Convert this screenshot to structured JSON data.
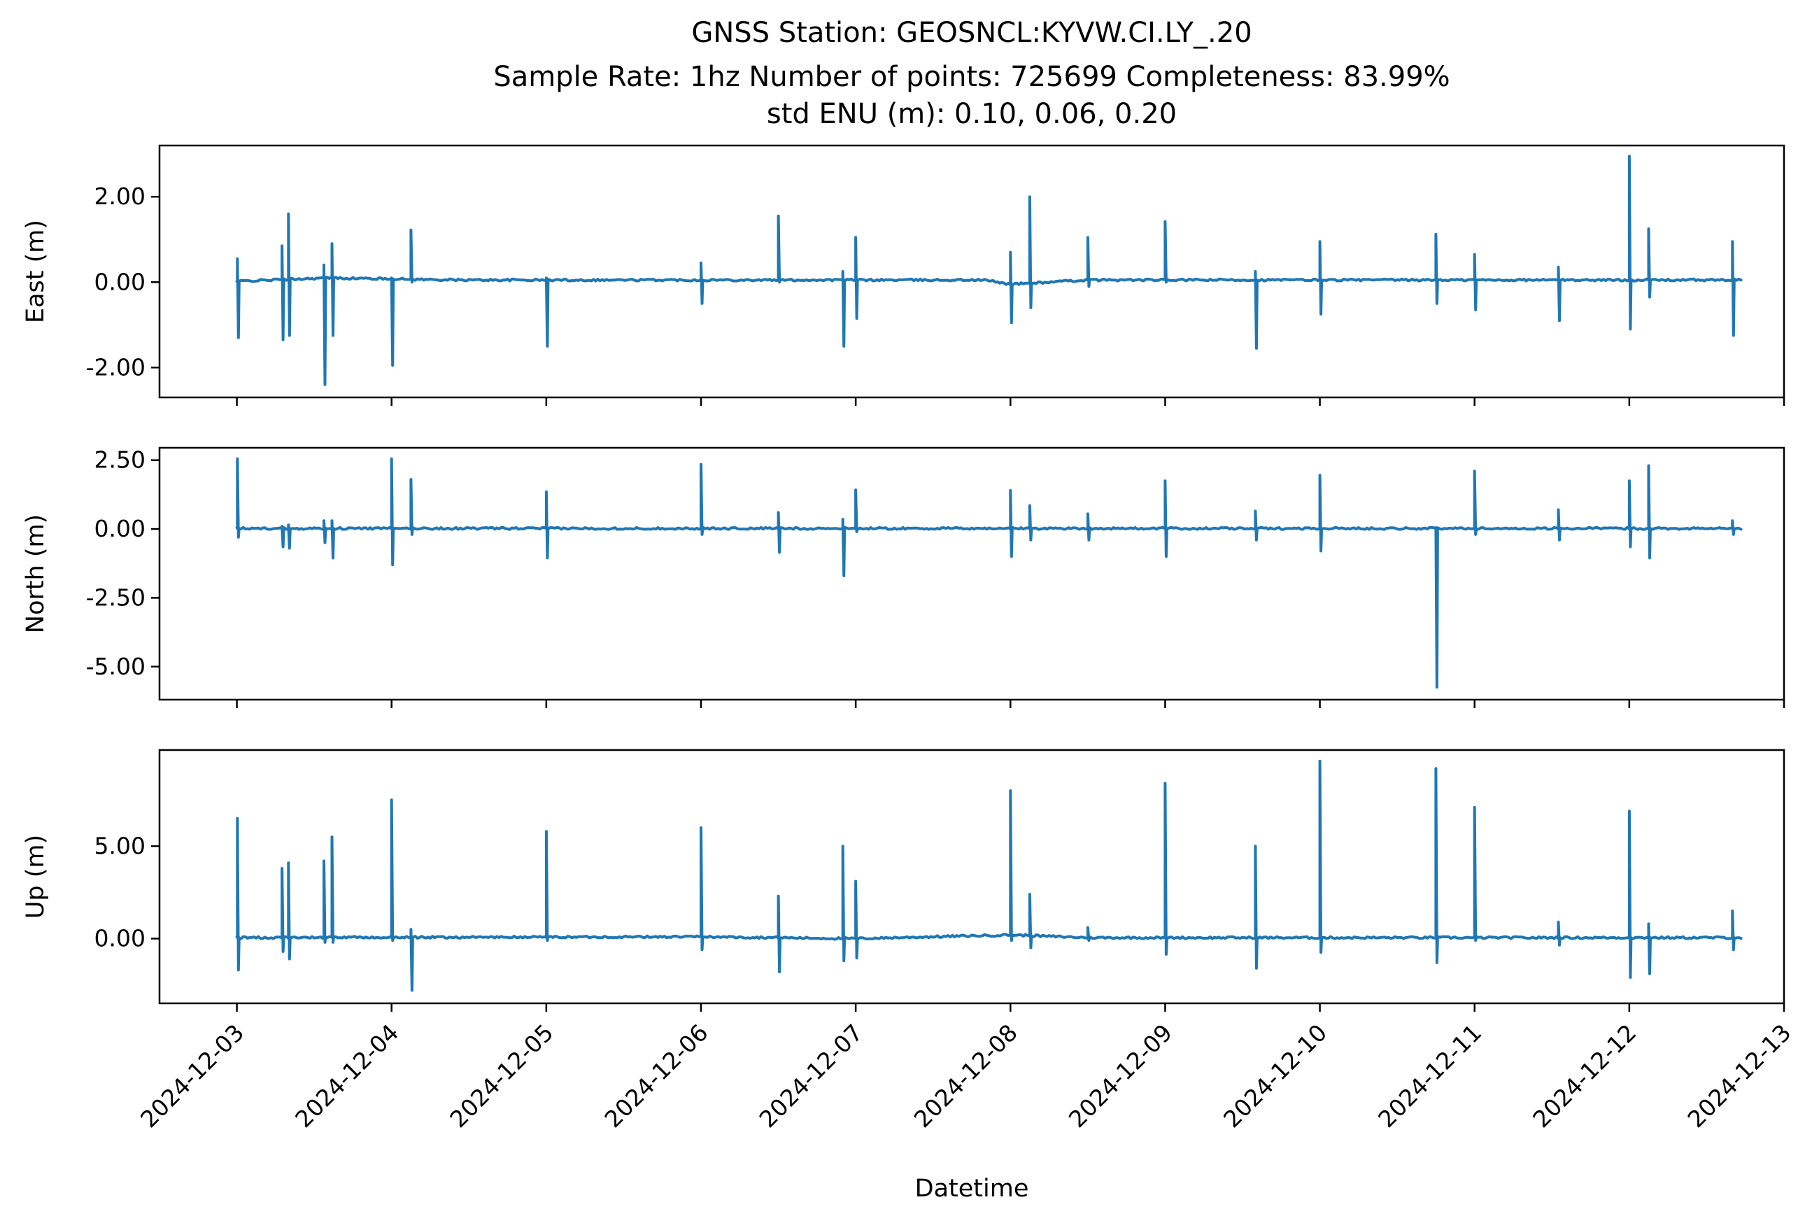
{
  "chart_data": {
    "type": "line",
    "title_lines": [
      "GNSS Station: GEOSNCL:KYVW.CI.LY_.20",
      "Sample Rate: 1hz   Number of points: 725699    Completeness:  83.99%",
      "std ENU (m):  0.10, 0.06, 0.20"
    ],
    "xlabel": "Datetime",
    "x_range": [
      "2024-12-02T12:00",
      "2024-12-13T00:00"
    ],
    "x_ticks": [
      "2024-12-03",
      "2024-12-04",
      "2024-12-05",
      "2024-12-06",
      "2024-12-07",
      "2024-12-08",
      "2024-12-09",
      "2024-12-10",
      "2024-12-11",
      "2024-12-12",
      "2024-12-13"
    ],
    "data_start": "2024-12-03T00:00",
    "data_end": "2024-12-12T17:30",
    "series_color": "#1f77b4",
    "panels": [
      {
        "name": "east",
        "ylabel": "East (m)",
        "ylim": [
          -2.7,
          3.2
        ],
        "yticks": [
          2.0,
          0.0,
          -2.0
        ],
        "ytick_labels": [
          "2.00",
          "0.00",
          "-2.00"
        ],
        "baseline": [
          [
            "2024-12-03T00:00",
            0.02
          ],
          [
            "2024-12-03T14:00",
            0.1
          ],
          [
            "2024-12-04T10:00",
            0.05
          ],
          [
            "2024-12-07T00:00",
            0.05
          ],
          [
            "2024-12-07T20:00",
            0.05
          ],
          [
            "2024-12-08T00:00",
            -0.05
          ],
          [
            "2024-12-08T12:00",
            0.05
          ],
          [
            "2024-12-10T18:00",
            0.05
          ],
          [
            "2024-12-12T17:30",
            0.05
          ]
        ],
        "spikes": [
          [
            "2024-12-03T00:05",
            0.55,
            -1.3
          ],
          [
            "2024-12-03T07:00",
            0.85,
            -1.35
          ],
          [
            "2024-12-03T08:00",
            1.6,
            -1.25
          ],
          [
            "2024-12-03T13:30",
            0.4,
            -2.4
          ],
          [
            "2024-12-03T14:45",
            0.9,
            -1.25
          ],
          [
            "2024-12-04T00:00",
            0.1,
            -1.95
          ],
          [
            "2024-12-04T03:00",
            1.22,
            0.0
          ],
          [
            "2024-12-05T00:00",
            0.1,
            -1.5
          ],
          [
            "2024-12-06T00:00",
            0.45,
            -0.5
          ],
          [
            "2024-12-06T12:00",
            1.55,
            0.0
          ],
          [
            "2024-12-06T22:00",
            0.25,
            -1.5
          ],
          [
            "2024-12-07T00:00",
            1.05,
            -0.85
          ],
          [
            "2024-12-08T00:00",
            0.7,
            -0.95
          ],
          [
            "2024-12-08T03:00",
            2.0,
            -0.6
          ],
          [
            "2024-12-08T12:00",
            1.05,
            -0.1
          ],
          [
            "2024-12-09T00:00",
            1.42,
            0.0
          ],
          [
            "2024-12-09T14:00",
            0.25,
            -1.55
          ],
          [
            "2024-12-10T00:00",
            0.95,
            -0.75
          ],
          [
            "2024-12-10T18:00",
            1.12,
            -0.5
          ],
          [
            "2024-12-11T00:00",
            0.65,
            -0.65
          ],
          [
            "2024-12-11T13:00",
            0.35,
            -0.9
          ],
          [
            "2024-12-12T00:00",
            2.95,
            -1.1
          ],
          [
            "2024-12-12T03:00",
            1.25,
            -0.35
          ],
          [
            "2024-12-12T16:00",
            0.95,
            -1.25
          ]
        ]
      },
      {
        "name": "north",
        "ylabel": "North (m)",
        "ylim": [
          -6.2,
          2.95
        ],
        "yticks": [
          2.5,
          0.0,
          -2.5,
          -5.0
        ],
        "ytick_labels": [
          "2.50",
          "0.00",
          "-2.50",
          "-5.00"
        ],
        "baseline": [
          [
            "2024-12-03T00:00",
            0.02
          ],
          [
            "2024-12-12T17:30",
            0.02
          ]
        ],
        "spikes": [
          [
            "2024-12-03T00:05",
            2.55,
            -0.3
          ],
          [
            "2024-12-03T07:00",
            0.1,
            -0.65
          ],
          [
            "2024-12-03T08:00",
            0.15,
            -0.7
          ],
          [
            "2024-12-03T13:30",
            0.3,
            -0.5
          ],
          [
            "2024-12-03T14:45",
            0.3,
            -1.05
          ],
          [
            "2024-12-04T00:00",
            2.55,
            -1.3
          ],
          [
            "2024-12-04T03:00",
            1.8,
            -0.2
          ],
          [
            "2024-12-05T00:00",
            1.35,
            -1.05
          ],
          [
            "2024-12-06T00:00",
            2.35,
            -0.2
          ],
          [
            "2024-12-06T12:00",
            0.6,
            -0.85
          ],
          [
            "2024-12-06T22:00",
            0.35,
            -1.7
          ],
          [
            "2024-12-07T00:00",
            1.42,
            -0.1
          ],
          [
            "2024-12-08T00:00",
            1.4,
            -1.0
          ],
          [
            "2024-12-08T03:00",
            0.85,
            -0.4
          ],
          [
            "2024-12-08T12:00",
            0.55,
            -0.4
          ],
          [
            "2024-12-09T00:00",
            1.75,
            -1.0
          ],
          [
            "2024-12-09T14:00",
            0.65,
            -0.4
          ],
          [
            "2024-12-10T00:00",
            1.95,
            -0.8
          ],
          [
            "2024-12-10T18:00",
            0.05,
            -5.75
          ],
          [
            "2024-12-11T00:00",
            2.1,
            -0.2
          ],
          [
            "2024-12-11T13:00",
            0.7,
            -0.4
          ],
          [
            "2024-12-12T00:00",
            1.75,
            -0.65
          ],
          [
            "2024-12-12T03:00",
            2.3,
            -1.05
          ],
          [
            "2024-12-12T16:00",
            0.3,
            -0.2
          ]
        ]
      },
      {
        "name": "up",
        "ylabel": "Up (m)",
        "ylim": [
          -3.5,
          10.2
        ],
        "yticks": [
          5.0,
          0.0
        ],
        "ytick_labels": [
          "5.00",
          "0.00"
        ],
        "baseline": [
          [
            "2024-12-03T00:00",
            0.05
          ],
          [
            "2024-12-06T00:00",
            0.1
          ],
          [
            "2024-12-07T00:00",
            0.0
          ],
          [
            "2024-12-08T00:00",
            0.2
          ],
          [
            "2024-12-08T12:00",
            0.05
          ],
          [
            "2024-12-12T17:30",
            0.05
          ]
        ],
        "spikes": [
          [
            "2024-12-03T00:05",
            6.5,
            -1.7
          ],
          [
            "2024-12-03T07:00",
            3.8,
            -0.7
          ],
          [
            "2024-12-03T08:00",
            4.1,
            -1.1
          ],
          [
            "2024-12-03T13:30",
            4.2,
            -0.2
          ],
          [
            "2024-12-03T14:45",
            5.5,
            -0.2
          ],
          [
            "2024-12-04T00:00",
            7.5,
            -0.1
          ],
          [
            "2024-12-04T03:00",
            0.5,
            -2.8
          ],
          [
            "2024-12-05T00:00",
            5.8,
            -0.1
          ],
          [
            "2024-12-06T00:00",
            6.0,
            -0.6
          ],
          [
            "2024-12-06T12:00",
            2.3,
            -1.8
          ],
          [
            "2024-12-06T22:00",
            5.0,
            -1.2
          ],
          [
            "2024-12-07T00:00",
            3.1,
            -1.05
          ],
          [
            "2024-12-08T00:00",
            8.0,
            -0.1
          ],
          [
            "2024-12-08T03:00",
            2.4,
            -0.5
          ],
          [
            "2024-12-08T12:00",
            0.6,
            -0.1
          ],
          [
            "2024-12-09T00:00",
            8.4,
            -0.85
          ],
          [
            "2024-12-09T14:00",
            5.0,
            -1.6
          ],
          [
            "2024-12-10T00:00",
            9.6,
            -0.75
          ],
          [
            "2024-12-10T18:00",
            9.2,
            -1.3
          ],
          [
            "2024-12-11T00:00",
            7.1,
            -0.1
          ],
          [
            "2024-12-11T13:00",
            0.9,
            -0.35
          ],
          [
            "2024-12-12T00:00",
            6.9,
            -2.1
          ],
          [
            "2024-12-12T03:00",
            0.8,
            -1.9
          ],
          [
            "2024-12-12T16:00",
            1.5,
            -0.6
          ]
        ]
      }
    ]
  }
}
